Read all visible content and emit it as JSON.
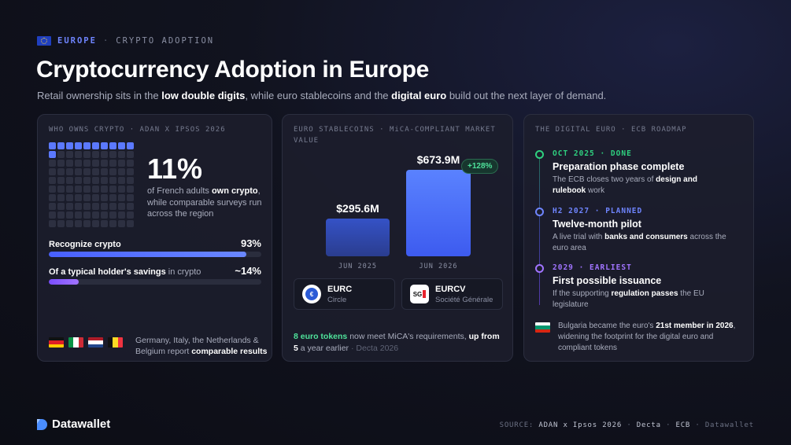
{
  "header": {
    "region": "EUROPE",
    "separator": "·",
    "topic": "CRYPTO ADOPTION",
    "title": "Cryptocurrency Adoption in Europe",
    "subtitle_parts": [
      "Retail ownership sits in the ",
      "low double digits",
      ", while euro stablecoins and the ",
      "digital euro",
      " build out the next layer of demand."
    ]
  },
  "ownership_card": {
    "label": "WHO OWNS CRYPTO · ADAN X IPSOS 2026",
    "headline_value": "11%",
    "headline_desc_parts": [
      "of French adults ",
      "own crypto",
      ", while comparable surveys run across the region"
    ],
    "dot_grid_filled": 11,
    "dot_grid_total": 100,
    "stat1": {
      "label": "Recognize crypto",
      "value": "93%",
      "fill_percent": 93
    },
    "stat2": {
      "label_bold": "Of a typical holder's savings",
      "label_rest": " in crypto",
      "value": "~14%",
      "fill_percent": 14
    },
    "footer_parts": [
      "Germany, Italy, the Netherlands & Belgium report ",
      "comparable results"
    ],
    "flags": [
      "Germany",
      "Italy",
      "Netherlands",
      "Belgium"
    ]
  },
  "stablecoin_card": {
    "label": "EURO STABLECOINS · MiCA-COMPLIANT MARKET VALUE",
    "bars": [
      {
        "value_label": "$295.6M",
        "date": "JUN 2025"
      },
      {
        "value_label": "$673.9M",
        "date": "JUN 2026"
      }
    ],
    "growth_badge": "+128%",
    "tokens": [
      {
        "name": "EURC",
        "issuer": "Circle",
        "icon": "eurc-icon"
      },
      {
        "name": "EURCV",
        "issuer": "Société Générale",
        "icon": "sg-icon",
        "icon_text": "SG"
      }
    ],
    "footnote": {
      "highlight": "8 euro tokens",
      "middle": " now meet MiCA's requirements, ",
      "bold": "up from 5",
      "end": " a year earlier",
      "source": " · Decta 2026"
    }
  },
  "digital_euro_card": {
    "label": "THE DIGITAL EURO · ECB ROADMAP",
    "timeline": [
      {
        "date": "OCT 2025 · DONE",
        "title": "Preparation phase complete",
        "desc_parts": [
          "The ECB closes two years of ",
          "design and rulebook",
          " work"
        ],
        "color": "#2fd07f"
      },
      {
        "date": "H2 2027 · PLANNED",
        "title": "Twelve-month pilot",
        "desc_parts": [
          "A live trial with ",
          "banks and consumers",
          " across the euro area"
        ],
        "color": "#6f85ff"
      },
      {
        "date": "2029 · EARLIEST",
        "title": "First possible issuance",
        "desc_parts": [
          "If the supporting ",
          "regulation passes",
          " the EU legislature"
        ],
        "color": "#a174ff"
      }
    ],
    "note_parts": [
      "Bulgaria became the euro's ",
      "21st member in 2026",
      ", widening the footprint for the digital euro and compliant tokens"
    ]
  },
  "footer": {
    "brand": "Datawallet",
    "source_prefix": "SOURCE:",
    "sources": [
      "ADAN x Ipsos 2026",
      "Decta",
      "ECB"
    ],
    "source_faint": "Datawallet",
    "dot": "·"
  }
}
